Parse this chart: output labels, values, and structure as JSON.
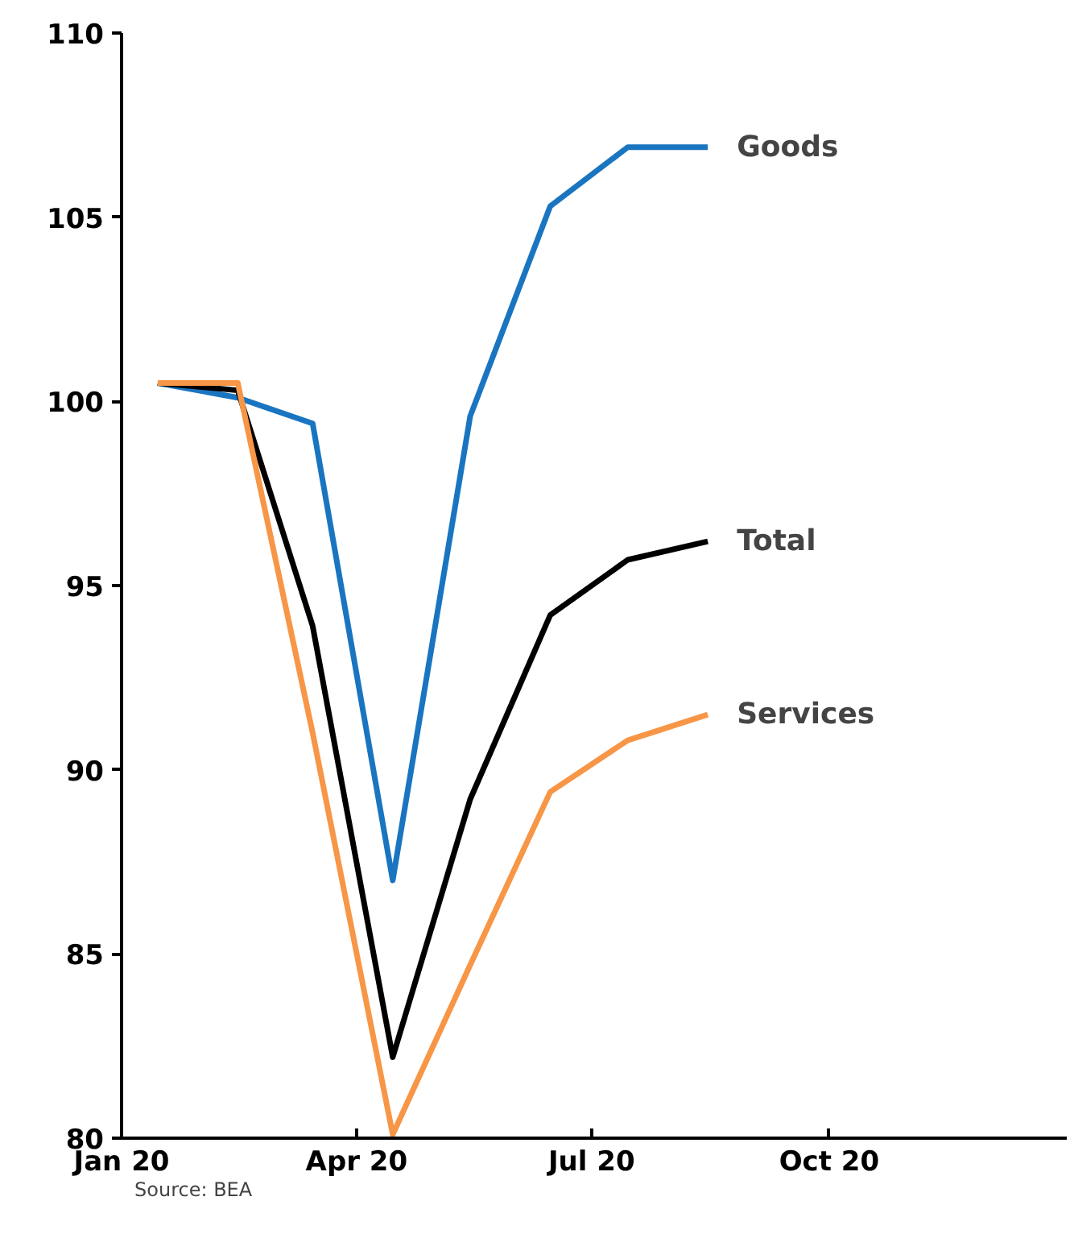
{
  "chart_data": {
    "type": "line",
    "x": [
      "2020-01-15",
      "2020-02-15",
      "2020-03-15",
      "2020-04-15",
      "2020-05-15",
      "2020-06-15",
      "2020-07-15",
      "2020-08-15"
    ],
    "series": [
      {
        "name": "Goods",
        "color": "#1a75c0",
        "values": [
          100.5,
          100.1,
          99.4,
          87.0,
          99.6,
          105.3,
          106.9,
          106.9
        ]
      },
      {
        "name": "Total",
        "color": "#000000",
        "values": [
          100.5,
          100.3,
          93.9,
          82.2,
          89.2,
          94.2,
          95.7,
          96.2
        ]
      },
      {
        "name": "Services",
        "color": "#f79646",
        "values": [
          100.5,
          100.5,
          91.0,
          80.1,
          84.7,
          89.4,
          90.8,
          91.5
        ]
      }
    ],
    "xlim": [
      "2020-01-01",
      "2021-01-01"
    ],
    "xticks": [
      {
        "value": "2020-01-01",
        "label": "Jan 20"
      },
      {
        "value": "2020-04-01",
        "label": "Apr 20"
      },
      {
        "value": "2020-07-01",
        "label": "Jul 20"
      },
      {
        "value": "2020-10-01",
        "label": "Oct 20"
      }
    ],
    "ylim": [
      80,
      110
    ],
    "yticks": [
      80,
      85,
      90,
      95,
      100,
      105,
      110
    ],
    "grid": false,
    "legend": false,
    "marker": "none",
    "line_style": "solid",
    "annotations": [
      "Source: BEA"
    ]
  }
}
